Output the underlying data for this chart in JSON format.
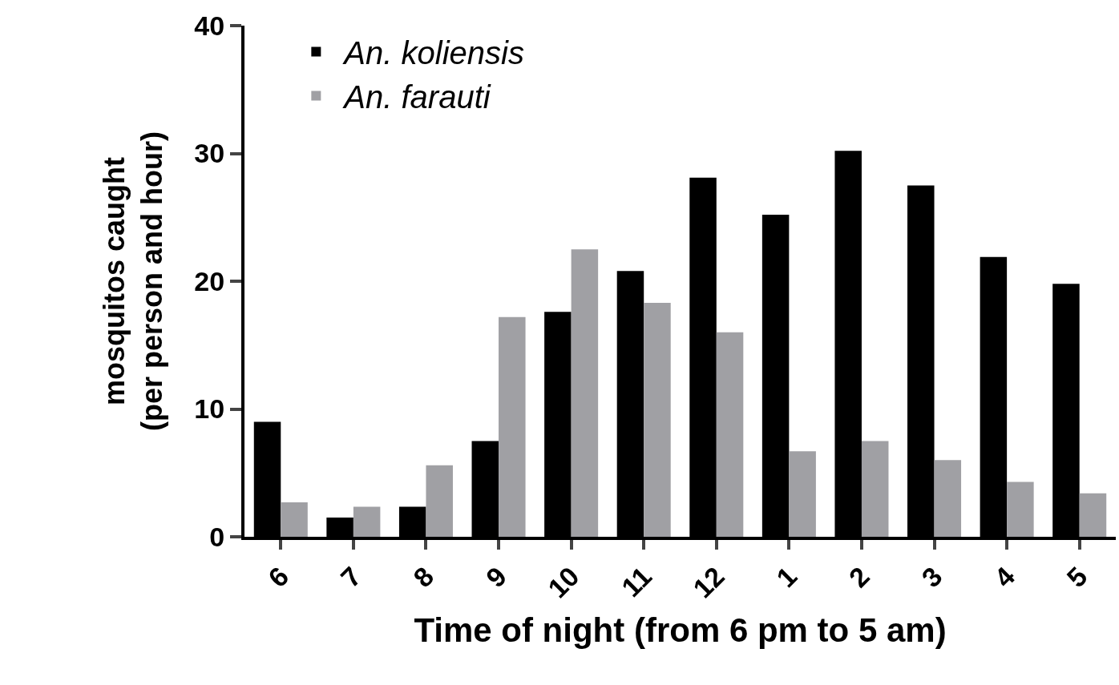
{
  "chart_data": {
    "type": "bar",
    "xlabel": "Time of night (from 6 pm to 5 am)",
    "ylabel": "mosquitos caught\n(per person and hour)",
    "categories": [
      "6",
      "7",
      "8",
      "9",
      "10",
      "11",
      "12",
      "1",
      "2",
      "3",
      "4",
      "5"
    ],
    "series": [
      {
        "name": "An. koliensis",
        "color": "#000000",
        "values": [
          9.0,
          1.5,
          2.35,
          7.5,
          17.6,
          20.8,
          28.1,
          25.2,
          30.2,
          27.5,
          21.9,
          19.8
        ]
      },
      {
        "name": "An. farauti",
        "color": "#a0a0a4",
        "values": [
          2.7,
          2.35,
          5.6,
          17.2,
          22.5,
          18.3,
          16.0,
          6.7,
          7.5,
          6.0,
          4.3,
          3.4
        ]
      }
    ],
    "ylim": [
      0,
      40
    ],
    "yticks": [
      0,
      10,
      20,
      30,
      40
    ],
    "legend": "top left"
  }
}
